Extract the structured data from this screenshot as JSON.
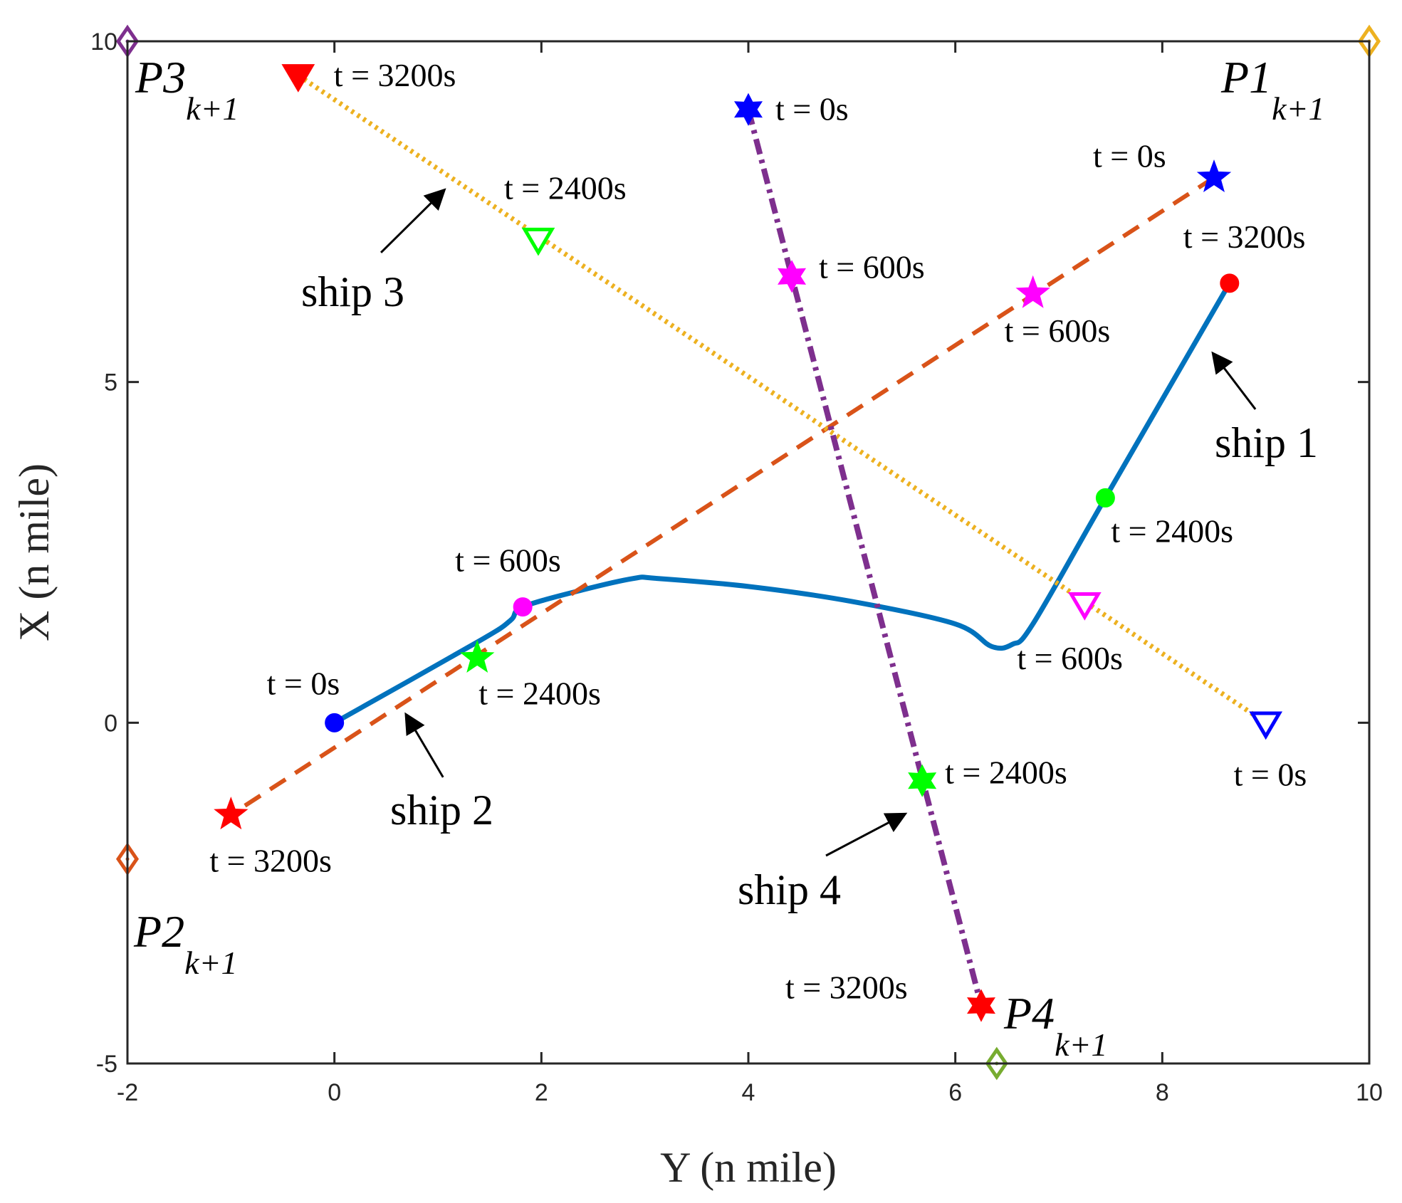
{
  "chart_data": {
    "type": "line",
    "xlabel": "Y (n mile)",
    "ylabel": "X (n mile)",
    "xlim": [
      -2,
      10
    ],
    "ylim": [
      -5,
      10
    ],
    "xticks": [
      -2,
      0,
      2,
      4,
      6,
      8,
      10
    ],
    "yticks": [
      -5,
      0,
      5,
      10
    ],
    "xtick_labels": [
      "-2",
      "0",
      "2",
      "4",
      "6",
      "8",
      "10"
    ],
    "ytick_labels": [
      "-5",
      "0",
      "5",
      "10"
    ],
    "grid": false,
    "series": [
      {
        "name": "ship 1",
        "color": "#0072BD",
        "style": "solid",
        "points": [
          [
            0,
            0
          ],
          [
            1.4,
            1.2
          ],
          [
            1.7,
            1.5
          ],
          [
            1.82,
            1.7
          ],
          [
            2.4,
            1.95
          ],
          [
            2.9,
            2.12
          ],
          [
            3.1,
            2.12
          ],
          [
            4.0,
            2.0
          ],
          [
            5.0,
            1.78
          ],
          [
            6.0,
            1.45
          ],
          [
            6.35,
            1.12
          ],
          [
            6.55,
            1.15
          ],
          [
            6.75,
            1.45
          ],
          [
            7.45,
            3.3
          ],
          [
            8.65,
            6.45
          ]
        ]
      },
      {
        "name": "ship 2",
        "color": "#D95319",
        "style": "dashed",
        "points": [
          [
            8.5,
            8.0
          ],
          [
            -1.0,
            -1.35
          ]
        ]
      },
      {
        "name": "ship 3",
        "color": "#EDB120",
        "style": "dotted",
        "points": [
          [
            -0.35,
            9.5
          ],
          [
            9.0,
            0.0
          ]
        ]
      },
      {
        "name": "ship 4",
        "color": "#7E2F8E",
        "style": "dashdot",
        "points": [
          [
            4.0,
            9.0
          ],
          [
            6.25,
            -4.15
          ]
        ]
      }
    ],
    "markers": [
      {
        "id": "s1-t0",
        "series": "ship 1",
        "shape": "circle",
        "color": "#0000FF",
        "x": 0,
        "y": 0,
        "label": "t = 0s"
      },
      {
        "id": "s1-t600",
        "series": "ship 1",
        "shape": "circle",
        "color": "#FF00FF",
        "x": 1.82,
        "y": 1.7,
        "label": "t = 600s"
      },
      {
        "id": "s1-t2400",
        "series": "ship 1",
        "shape": "circle",
        "color": "#00FF00",
        "x": 7.45,
        "y": 3.3,
        "label": "t = 2400s"
      },
      {
        "id": "s1-t3200",
        "series": "ship 1",
        "shape": "circle",
        "color": "#FF0000",
        "x": 8.65,
        "y": 6.45,
        "label": "t = 3200s"
      },
      {
        "id": "s2-t0",
        "series": "ship 2",
        "shape": "star",
        "color": "#0000FF",
        "x": 8.5,
        "y": 8.0,
        "label": "t = 0s"
      },
      {
        "id": "s2-t600",
        "series": "ship 2",
        "shape": "star",
        "color": "#FF00FF",
        "x": 6.75,
        "y": 6.3,
        "label": "t = 600s"
      },
      {
        "id": "s2-t2400",
        "series": "ship 2",
        "shape": "star",
        "color": "#00FF00",
        "x": 1.38,
        "y": 0.95,
        "label": "t = 2400s"
      },
      {
        "id": "s2-t3200",
        "series": "ship 2",
        "shape": "star",
        "color": "#FF0000",
        "x": -1.0,
        "y": -1.35,
        "label": "t = 3200s"
      },
      {
        "id": "s3-t0",
        "series": "ship 3",
        "shape": "triangle-down-open",
        "color": "#0000FF",
        "x": 9.0,
        "y": 0.0,
        "label": "t = 0s"
      },
      {
        "id": "s3-t600",
        "series": "ship 3",
        "shape": "triangle-down-open",
        "color": "#FF00FF",
        "x": 7.25,
        "y": 1.75,
        "label": "t = 600s"
      },
      {
        "id": "s3-t2400",
        "series": "ship 3",
        "shape": "triangle-down-open",
        "color": "#00FF00",
        "x": 1.97,
        "y": 7.1,
        "label": "t = 2400s"
      },
      {
        "id": "s3-t3200",
        "series": "ship 3",
        "shape": "triangle-down-filled",
        "color": "#FF0000",
        "x": -0.35,
        "y": 9.5,
        "label": "t = 3200s"
      },
      {
        "id": "s4-t0",
        "series": "ship 4",
        "shape": "hexagram",
        "color": "#0000FF",
        "x": 4.0,
        "y": 9.0,
        "label": "t = 0s"
      },
      {
        "id": "s4-t600",
        "series": "ship 4",
        "shape": "hexagram",
        "color": "#FF00FF",
        "x": 4.42,
        "y": 6.55,
        "label": "t = 600s"
      },
      {
        "id": "s4-t2400",
        "series": "ship 4",
        "shape": "hexagram",
        "color": "#00FF00",
        "x": 5.68,
        "y": -0.85,
        "label": "t = 2400s"
      },
      {
        "id": "s4-t3200",
        "series": "ship 4",
        "shape": "hexagram",
        "color": "#FF0000",
        "x": 6.25,
        "y": -4.15,
        "label": "t = 3200s"
      }
    ],
    "waypoints": [
      {
        "id": "P1",
        "name": "P1",
        "subscript": "k+1",
        "color": "#EDB120",
        "x": 10,
        "y": 10
      },
      {
        "id": "P2",
        "name": "P2",
        "subscript": "k+1",
        "color": "#D95319",
        "x": -2,
        "y": -2
      },
      {
        "id": "P3",
        "name": "P3",
        "subscript": "k+1",
        "color": "#7E2F8E",
        "x": -2,
        "y": 10
      },
      {
        "id": "P4",
        "name": "P4",
        "subscript": "k+1",
        "color": "#77AC30",
        "x": 6.4,
        "y": -5
      }
    ],
    "annotations": [
      {
        "id": "ship1",
        "text": "ship 1",
        "arrow_to": [
          8.5,
          5.4
        ],
        "arrow_from": [
          8.9,
          4.6
        ]
      },
      {
        "id": "ship2",
        "text": "ship 2",
        "arrow_to": [
          0.7,
          0.1
        ],
        "arrow_from": [
          1.05,
          -0.8
        ]
      },
      {
        "id": "ship3",
        "text": "ship 3",
        "arrow_to": [
          1.05,
          7.8
        ],
        "arrow_from": [
          0.45,
          6.9
        ]
      },
      {
        "id": "ship4",
        "text": "ship 4",
        "arrow_to": [
          5.5,
          -1.35
        ],
        "arrow_from": [
          4.75,
          -1.95
        ]
      }
    ]
  }
}
